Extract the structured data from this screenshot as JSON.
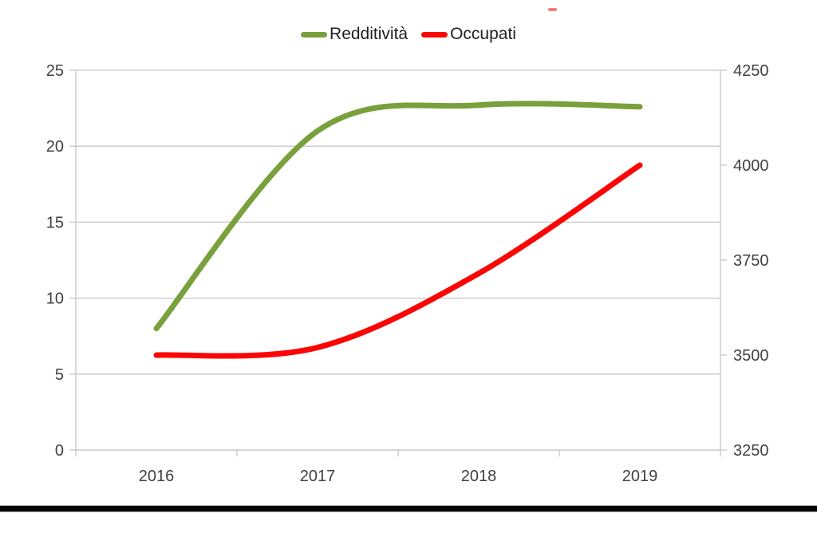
{
  "chart_data": {
    "type": "line",
    "title": "",
    "categories": [
      "2016",
      "2017",
      "2018",
      "2019"
    ],
    "series": [
      {
        "name": "Redditività",
        "axis": "left",
        "color": "#7AA03C",
        "values": [
          8,
          21,
          22.7,
          22.6
        ]
      },
      {
        "name": "Occupati",
        "axis": "right",
        "color": "#FB0505",
        "values": [
          3500,
          3520,
          3715,
          4000
        ]
      }
    ],
    "left_axis": {
      "range": [
        0,
        25
      ],
      "ticks": [
        0,
        5,
        10,
        15,
        20,
        25
      ]
    },
    "right_axis": {
      "range": [
        3250,
        4250
      ],
      "ticks": [
        3250,
        3500,
        3750,
        4000,
        4250
      ]
    },
    "grid": true,
    "smooth": true,
    "legend_position": "top",
    "grid_color": "#C6C6C6",
    "label_color": "#404040"
  },
  "legend": {
    "items": [
      {
        "label": "Redditività"
      },
      {
        "label": "Occupati"
      }
    ]
  },
  "decor": {
    "stray_mark_color": "#F87C7C",
    "bottom_rule_color": "#050505"
  }
}
